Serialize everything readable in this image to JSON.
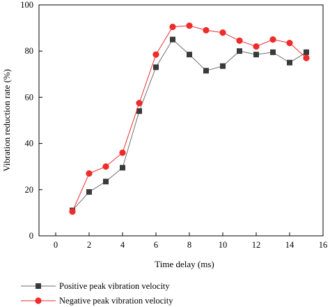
{
  "chart_data": {
    "type": "line",
    "title": "",
    "xlabel": "Time delay (ms)",
    "ylabel": "Vibration reduction rate (%)",
    "xlim": [
      -1,
      16
    ],
    "ylim": [
      0,
      100
    ],
    "xticks": [
      0,
      2,
      4,
      6,
      8,
      10,
      12,
      14,
      16
    ],
    "yticks": [
      0,
      20,
      40,
      60,
      80,
      100
    ],
    "grid": false,
    "legend_placement": "bottom-left (below plot)",
    "x": [
      1,
      2,
      3,
      4,
      5,
      6,
      7,
      8,
      9,
      10,
      11,
      12,
      13,
      14,
      15
    ],
    "series": [
      {
        "name": "Positive peak vibration velocity",
        "marker": "square",
        "color": "#3a3a3a",
        "line_color": "#6e6e6e",
        "values": [
          11,
          19,
          23.5,
          29.5,
          54,
          73,
          85,
          78.5,
          71.5,
          73.5,
          80,
          78.5,
          79.5,
          75,
          79.5
        ]
      },
      {
        "name": "Negative peak vibration velocity",
        "marker": "circle",
        "color": "#ee2c2c",
        "line_color": "#ee2c2c",
        "values": [
          10.5,
          27,
          30,
          36,
          57.5,
          78.5,
          90.5,
          91,
          89,
          88,
          84.5,
          82,
          85,
          83.5,
          77
        ]
      }
    ]
  }
}
